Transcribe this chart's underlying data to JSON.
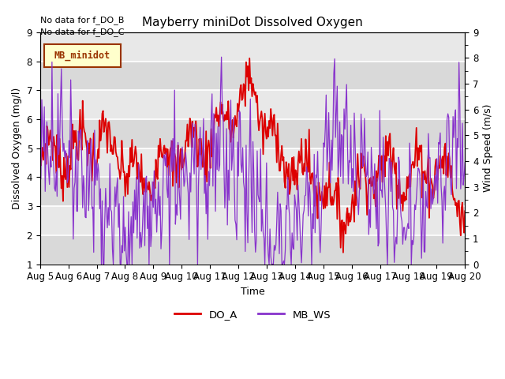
{
  "title": "Mayberry miniDot Dissolved Oxygen",
  "xlabel": "Time",
  "ylabel_left": "Dissolved Oxygen (mg/l)",
  "ylabel_right": "Wind Speed (m/s)",
  "text_annotations": [
    "No data for f_DO_B",
    "No data for f_DO_C"
  ],
  "legend_box_label": "MB_minidot",
  "legend_entries": [
    "DO_A",
    "MB_WS"
  ],
  "do_color": "#dd0000",
  "ws_color": "#8833cc",
  "do_linewidth": 1.3,
  "ws_linewidth": 0.9,
  "ylim_left": [
    1.0,
    9.0
  ],
  "ylim_right": [
    0.0,
    9.0
  ],
  "yticks_left": [
    1.0,
    2.0,
    3.0,
    4.0,
    5.0,
    6.0,
    7.0,
    8.0,
    9.0
  ],
  "yticks_right": [
    0.0,
    1.0,
    2.0,
    3.0,
    4.0,
    5.0,
    6.0,
    7.0,
    8.0,
    9.0
  ],
  "plot_bg_color": "#e8e8e8",
  "band_color": "#d0d0d0",
  "grid_color": "#ffffff"
}
